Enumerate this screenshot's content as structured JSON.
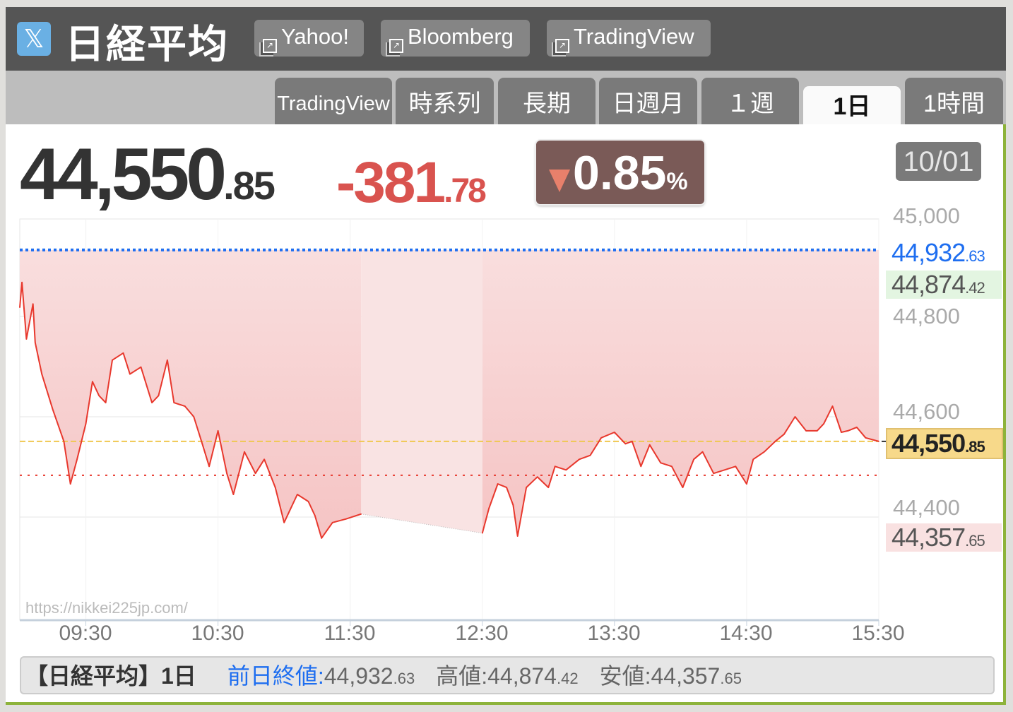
{
  "header": {
    "title": "日経平均",
    "logo_icon": "x-logo-icon",
    "links": [
      {
        "label": "Yahoo!",
        "icon": "external-link-icon"
      },
      {
        "label": "Bloomberg",
        "icon": "external-link-icon"
      },
      {
        "label": "TradingView",
        "icon": "external-link-icon"
      }
    ]
  },
  "tabs": [
    {
      "label": "TradingView",
      "active": false
    },
    {
      "label": "時系列",
      "active": false
    },
    {
      "label": "長期",
      "active": false
    },
    {
      "label": "日週月",
      "active": false
    },
    {
      "label": "１週",
      "active": false
    },
    {
      "label": "1日",
      "active": true
    },
    {
      "label": "1時間",
      "active": false
    }
  ],
  "quote": {
    "price_int": "44,550",
    "price_dec": ".85",
    "change_int": "-381",
    "change_dec": ".78",
    "change_pct": "0.85",
    "pct_unit": "%",
    "date": "10/01"
  },
  "labels": {
    "prev_close_int": "44,932",
    "prev_close_dec": ".63",
    "high_int": "44,874",
    "high_dec": ".42",
    "low_int": "44,357",
    "low_dec": ".65",
    "current_int": "44,550",
    "current_dec": ".85"
  },
  "watermark": "https://nikkei225jp.com/",
  "footer": {
    "name": "【日経平均】1日",
    "prev_label": "前日終値:",
    "prev_int": "44,932",
    "prev_dec": ".63",
    "high_label": "高値:",
    "high_int": "44,874",
    "high_dec": ".42",
    "low_label": "安値:",
    "low_int": "44,357",
    "low_dec": ".65"
  },
  "colors": {
    "line": "#e8382d",
    "fill": "#f5c4c4",
    "prev_close_line": "#1e6ef0",
    "current_line": "#f0c850",
    "down_accent": "#d9534f",
    "frame_green": "#8db33a"
  },
  "chart_data": {
    "type": "line",
    "xlim": [
      "09:00",
      "15:30"
    ],
    "ylim": [
      44100,
      45000
    ],
    "y_ticks": [
      "45,000",
      "44,800",
      "44,600",
      "44,400"
    ],
    "y_tick_values": [
      45000,
      44800,
      44600,
      44400
    ],
    "x_ticks": [
      "09:30",
      "10:30",
      "11:30",
      "12:30",
      "13:30",
      "14:30",
      "15:30"
    ],
    "prev_close": 44932.63,
    "high": 44874.42,
    "low": 44357.65,
    "last": 44550.85,
    "grid": true,
    "sessions": [
      {
        "points": [
          [
            "09:00",
            44818
          ],
          [
            "09:01",
            44868
          ],
          [
            "09:03",
            44755
          ],
          [
            "09:06",
            44825
          ],
          [
            "09:07",
            44748
          ],
          [
            "09:10",
            44685
          ],
          [
            "09:15",
            44614
          ],
          [
            "09:20",
            44551
          ],
          [
            "09:23",
            44466
          ],
          [
            "09:26",
            44515
          ],
          [
            "09:30",
            44586
          ],
          [
            "09:33",
            44670
          ],
          [
            "09:36",
            44642
          ],
          [
            "09:39",
            44628
          ],
          [
            "09:42",
            44713
          ],
          [
            "09:47",
            44727
          ],
          [
            "09:50",
            44685
          ],
          [
            "09:55",
            44699
          ],
          [
            "10:00",
            44628
          ],
          [
            "10:03",
            44642
          ],
          [
            "10:07",
            44713
          ],
          [
            "10:10",
            44628
          ],
          [
            "10:15",
            44621
          ],
          [
            "10:19",
            44600
          ],
          [
            "10:23",
            44544
          ],
          [
            "10:26",
            44501
          ],
          [
            "10:30",
            44572
          ],
          [
            "10:34",
            44487
          ],
          [
            "10:37",
            44445
          ],
          [
            "10:42",
            44530
          ],
          [
            "10:47",
            44487
          ],
          [
            "10:51",
            44515
          ],
          [
            "10:56",
            44459
          ],
          [
            "11:00",
            44389
          ],
          [
            "11:03",
            44417
          ],
          [
            "11:06",
            44445
          ],
          [
            "11:11",
            44431
          ],
          [
            "11:14",
            44403
          ],
          [
            "11:17",
            44358
          ],
          [
            "11:22",
            44389
          ],
          [
            "11:28",
            44396
          ],
          [
            "11:35",
            44406
          ]
        ]
      },
      {
        "points": [
          [
            "12:30",
            44368
          ],
          [
            "12:33",
            44417
          ],
          [
            "12:37",
            44466
          ],
          [
            "12:41",
            44459
          ],
          [
            "12:44",
            44424
          ],
          [
            "12:46",
            44362
          ],
          [
            "12:50",
            44459
          ],
          [
            "12:55",
            44480
          ],
          [
            "13:00",
            44459
          ],
          [
            "13:03",
            44501
          ],
          [
            "13:08",
            44494
          ],
          [
            "13:14",
            44515
          ],
          [
            "13:19",
            44523
          ],
          [
            "13:24",
            44558
          ],
          [
            "13:30",
            44569
          ],
          [
            "13:35",
            44546
          ],
          [
            "13:38",
            44551
          ],
          [
            "13:42",
            44501
          ],
          [
            "13:46",
            44544
          ],
          [
            "13:51",
            44508
          ],
          [
            "13:56",
            44501
          ],
          [
            "14:01",
            44459
          ],
          [
            "14:06",
            44515
          ],
          [
            "14:10",
            44530
          ],
          [
            "14:15",
            44487
          ],
          [
            "14:20",
            44494
          ],
          [
            "14:25",
            44501
          ],
          [
            "14:30",
            44466
          ],
          [
            "14:33",
            44515
          ],
          [
            "14:38",
            44530
          ],
          [
            "14:43",
            44551
          ],
          [
            "14:47",
            44565
          ],
          [
            "14:52",
            44600
          ],
          [
            "14:57",
            44572
          ],
          [
            "15:02",
            44572
          ],
          [
            "15:05",
            44586
          ],
          [
            "15:09",
            44621
          ],
          [
            "15:13",
            44569
          ],
          [
            "15:16",
            44572
          ],
          [
            "15:20",
            44579
          ],
          [
            "15:24",
            44558
          ],
          [
            "15:30",
            44550.85
          ]
        ]
      }
    ]
  }
}
